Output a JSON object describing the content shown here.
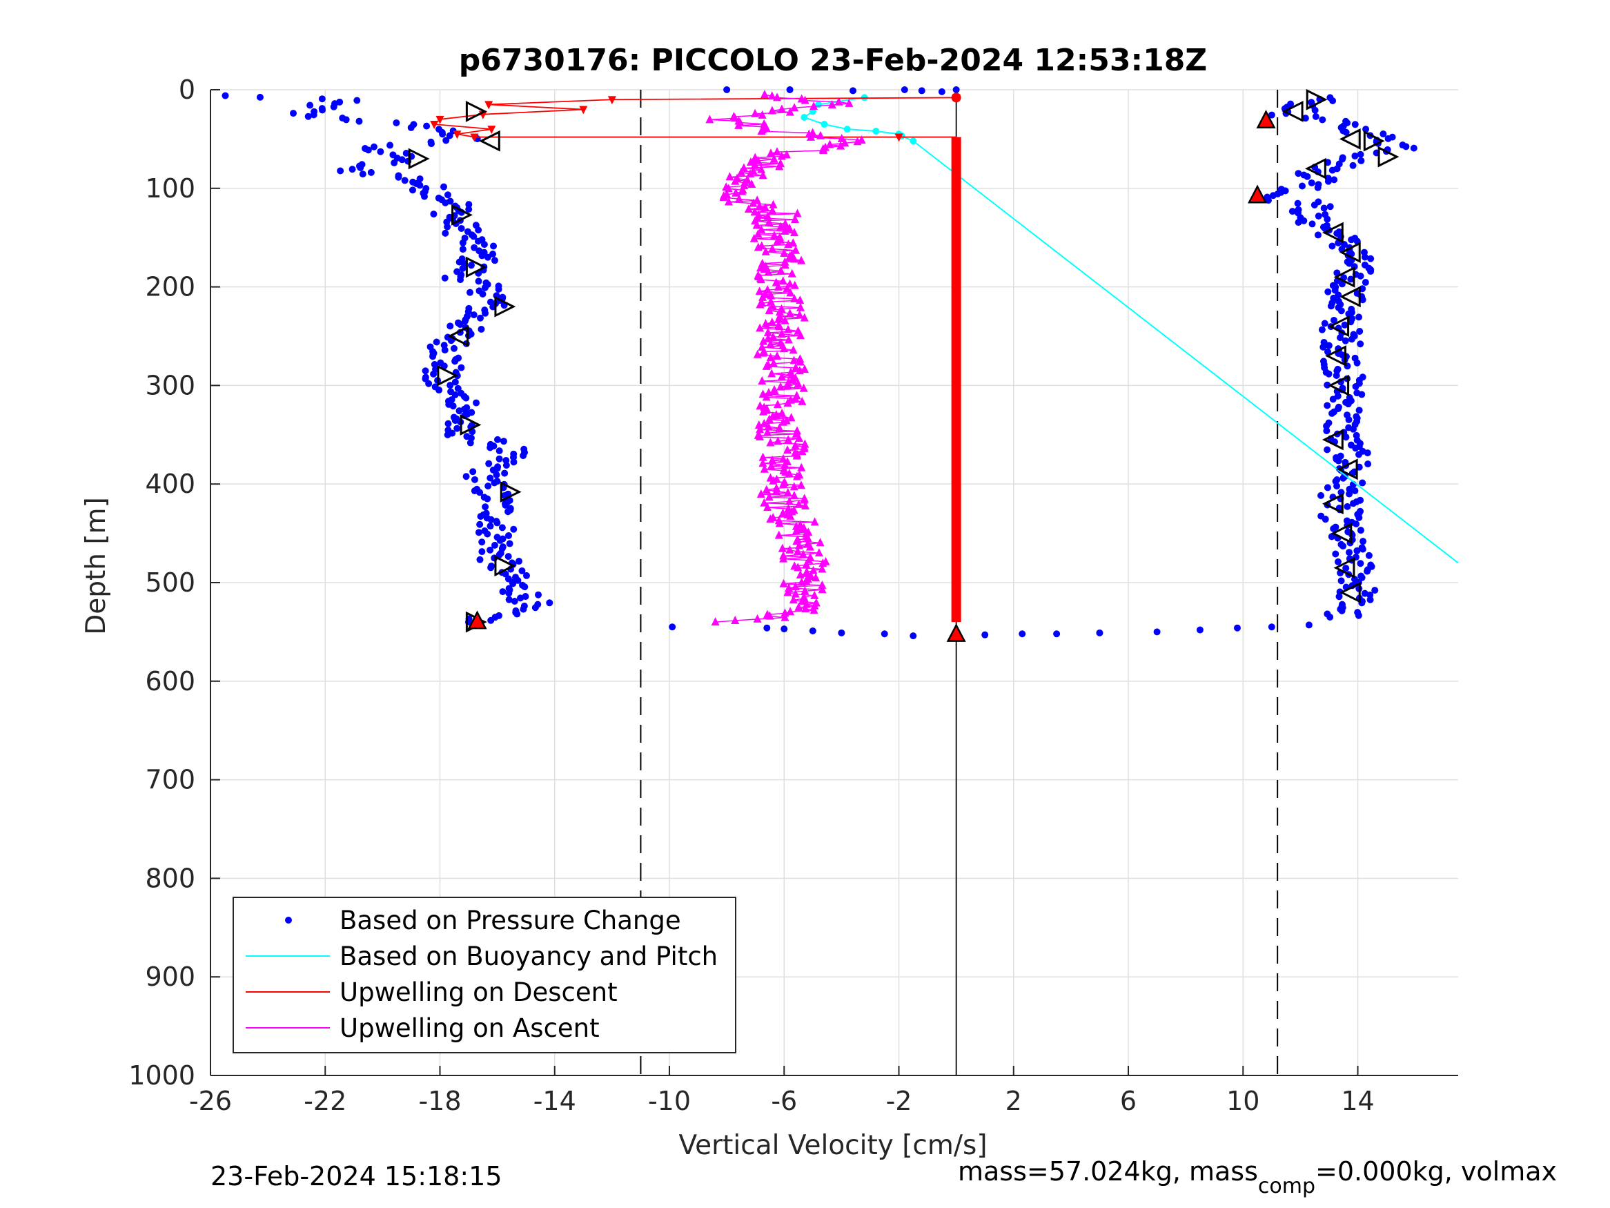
{
  "chart_data": {
    "type": "scatter",
    "title": "p6730176: PICCOLO 23-Feb-2024 12:53:18Z",
    "xlabel": "Vertical Velocity [cm/s]",
    "ylabel": "Depth [m]",
    "xlim": [
      -26,
      17.5
    ],
    "ylim": [
      0,
      1000
    ],
    "y_reversed": true,
    "grid": true,
    "x_ticks": [
      -26,
      -22,
      -18,
      -14,
      -10,
      -6,
      -2,
      2,
      6,
      10,
      14
    ],
    "x_tick_labels": [
      "-26",
      "-22",
      "-18",
      "-14",
      "-10",
      "-6",
      "-2",
      "2",
      "6",
      "10",
      "14"
    ],
    "y_ticks": [
      0,
      100,
      200,
      300,
      400,
      500,
      600,
      700,
      800,
      900,
      1000
    ],
    "y_tick_labels": [
      "0",
      "100",
      "200",
      "300",
      "400",
      "500",
      "600",
      "700",
      "800",
      "900",
      "1000"
    ],
    "reference_lines": {
      "dashed_x": [
        -11,
        11.2
      ],
      "solid_x": [
        0
      ]
    },
    "legend": {
      "placement": "bottom-left",
      "entries": [
        {
          "label": "Based on Pressure Change",
          "color": "#0000ff",
          "marker": "dot"
        },
        {
          "label": "Based on Buoyancy and Pitch",
          "color": "#00ffff",
          "marker": "line"
        },
        {
          "label": "Upwelling on Descent",
          "color": "#ff0000",
          "marker": "line"
        },
        {
          "label": "Upwelling on Ascent",
          "color": "#ff00ff",
          "marker": "line"
        }
      ]
    },
    "series": [
      {
        "key": "pressure_descent",
        "color": "#0000ff",
        "profile": [
          [
            -25.7,
            6
          ],
          [
            -21.5,
            10
          ],
          [
            -23,
            25
          ],
          [
            -21,
            30
          ],
          [
            -18,
            40
          ],
          [
            -17.2,
            50
          ],
          [
            -20.5,
            60
          ],
          [
            -19,
            70
          ],
          [
            -21.5,
            80
          ],
          [
            -19,
            90
          ],
          [
            -18.4,
            100
          ],
          [
            -17.4,
            115
          ],
          [
            -17.6,
            130
          ],
          [
            -17.0,
            150
          ],
          [
            -16.6,
            170
          ],
          [
            -17.2,
            190
          ],
          [
            -16.0,
            210
          ],
          [
            -16.8,
            230
          ],
          [
            -17.6,
            255
          ],
          [
            -17.8,
            280
          ],
          [
            -18.2,
            295
          ],
          [
            -17.0,
            320
          ],
          [
            -17.6,
            345
          ],
          [
            -15.6,
            365
          ],
          [
            -16.5,
            395
          ],
          [
            -16.0,
            420
          ],
          [
            -16.0,
            450
          ],
          [
            -16.0,
            475
          ],
          [
            -15.5,
            500
          ],
          [
            -14.8,
            520
          ],
          [
            -16.8,
            540
          ]
        ]
      },
      {
        "key": "pressure_ascent",
        "color": "#0000ff",
        "profile": [
          [
            12.8,
            8
          ],
          [
            11.5,
            25
          ],
          [
            13.5,
            35
          ],
          [
            15.8,
            60
          ],
          [
            13.8,
            70
          ],
          [
            12.6,
            85
          ],
          [
            12.8,
            95
          ],
          [
            10.8,
            110
          ],
          [
            12.5,
            115
          ],
          [
            12.2,
            130
          ],
          [
            13.2,
            145
          ],
          [
            13.8,
            165
          ],
          [
            13.8,
            195
          ],
          [
            13.5,
            215
          ],
          [
            13.4,
            240
          ],
          [
            13.5,
            265
          ],
          [
            13.5,
            290
          ],
          [
            13.6,
            320
          ],
          [
            13.4,
            350
          ],
          [
            13.8,
            380
          ],
          [
            13.4,
            410
          ],
          [
            13.4,
            440
          ],
          [
            13.6,
            465
          ],
          [
            14.0,
            490
          ],
          [
            14.0,
            510
          ],
          [
            13.4,
            535
          ]
        ]
      },
      {
        "key": "pressure_bottom_turn",
        "color": "#0000ff",
        "points": [
          [
            -9.9,
            545
          ],
          [
            -6.6,
            546
          ],
          [
            -6.0,
            547
          ],
          [
            -5.0,
            549
          ],
          [
            -4.0,
            551
          ],
          [
            -2.5,
            552
          ],
          [
            -1.5,
            554
          ],
          [
            1.0,
            553
          ],
          [
            2.3,
            552
          ],
          [
            3.5,
            552
          ],
          [
            5.0,
            551
          ],
          [
            7.0,
            550
          ],
          [
            8.5,
            548
          ],
          [
            9.8,
            546
          ],
          [
            11.0,
            545
          ],
          [
            12.3,
            543
          ]
        ]
      },
      {
        "key": "pressure_surface",
        "color": "#0000ff",
        "points": [
          [
            -8.0,
            0
          ],
          [
            -5.8,
            0
          ],
          [
            -3.6,
            1
          ],
          [
            -1.8,
            0
          ],
          [
            -1.2,
            1
          ],
          [
            -0.5,
            2
          ],
          [
            0,
            0
          ]
        ]
      },
      {
        "key": "buoyancy_pitch",
        "color": "#00ffff",
        "points": [
          [
            -3.2,
            8
          ],
          [
            -4.8,
            15
          ],
          [
            -5.0,
            22
          ],
          [
            -5.3,
            28
          ],
          [
            -4.6,
            35
          ],
          [
            -3.8,
            40
          ],
          [
            -2.8,
            42
          ],
          [
            -2.0,
            45
          ],
          [
            -1.9,
            47
          ],
          [
            -1.5,
            52
          ],
          [
            17.5,
            480
          ]
        ]
      },
      {
        "key": "upwelling_descent",
        "color": "#ff0000",
        "points": [
          [
            0,
            8
          ],
          [
            -12,
            10
          ],
          [
            -16.3,
            15
          ],
          [
            -13,
            20
          ],
          [
            -16.5,
            25
          ],
          [
            -18.0,
            30
          ],
          [
            -18.2,
            35
          ],
          [
            -16.2,
            40
          ],
          [
            -17.4,
            45
          ],
          [
            -16.8,
            48
          ],
          [
            -2,
            48
          ],
          [
            0,
            48
          ],
          [
            0,
            540
          ]
        ]
      },
      {
        "key": "upwelling_ascent",
        "color": "#ff00ff",
        "profile": [
          [
            -7.3,
            5
          ],
          [
            -4.0,
            15
          ],
          [
            -8.3,
            30
          ],
          [
            -4.6,
            50
          ],
          [
            -3.0,
            45
          ],
          [
            -6.4,
            70
          ],
          [
            -7.4,
            95
          ],
          [
            -7.8,
            110
          ],
          [
            -6.2,
            125
          ],
          [
            -6.3,
            150
          ],
          [
            -6.0,
            175
          ],
          [
            -6.2,
            200
          ],
          [
            -6.0,
            230
          ],
          [
            -6.3,
            260
          ],
          [
            -6.0,
            285
          ],
          [
            -6.0,
            310
          ],
          [
            -6.2,
            340
          ],
          [
            -6.0,
            370
          ],
          [
            -6.2,
            395
          ],
          [
            -6.0,
            420
          ],
          [
            -5.5,
            450
          ],
          [
            -5.2,
            480
          ],
          [
            -5.4,
            510
          ],
          [
            -5.4,
            530
          ],
          [
            -7.6,
            540
          ]
        ]
      }
    ],
    "markers": {
      "right_triangles": [
        [
          -16.8,
          22
        ],
        [
          -18.8,
          70
        ],
        [
          -17.3,
          127
        ],
        [
          -16.8,
          180
        ],
        [
          -15.8,
          220
        ],
        [
          -17.8,
          290
        ],
        [
          -17.0,
          340
        ],
        [
          -15.6,
          408
        ],
        [
          -15.8,
          483
        ],
        [
          12.5,
          10
        ],
        [
          15.0,
          68
        ],
        [
          14.5,
          52
        ],
        [
          -16.8,
          540
        ]
      ],
      "left_triangles": [
        [
          -16.2,
          52
        ],
        [
          -17.3,
          250
        ],
        [
          11.8,
          22
        ],
        [
          13.8,
          50
        ],
        [
          12.6,
          80
        ],
        [
          13.2,
          145
        ],
        [
          13.8,
          165
        ],
        [
          13.6,
          190
        ],
        [
          13.8,
          210
        ],
        [
          13.4,
          240
        ],
        [
          13.3,
          270
        ],
        [
          13.4,
          300
        ],
        [
          13.2,
          355
        ],
        [
          13.7,
          385
        ],
        [
          13.2,
          420
        ],
        [
          13.5,
          450
        ],
        [
          13.6,
          485
        ],
        [
          13.8,
          510
        ]
      ],
      "red_triangles": [
        [
          10.8,
          32
        ],
        [
          10.5,
          108
        ],
        [
          -16.7,
          540
        ],
        [
          0,
          553
        ]
      ],
      "red_dots": [
        [
          0,
          8
        ]
      ]
    }
  },
  "footer": {
    "timestamp": "23-Feb-2024 15:18:15",
    "mass_text": "mass=57.024kg, mass",
    "mass_sub": "comp",
    "mass_tail": "=0.000kg, volmax"
  }
}
